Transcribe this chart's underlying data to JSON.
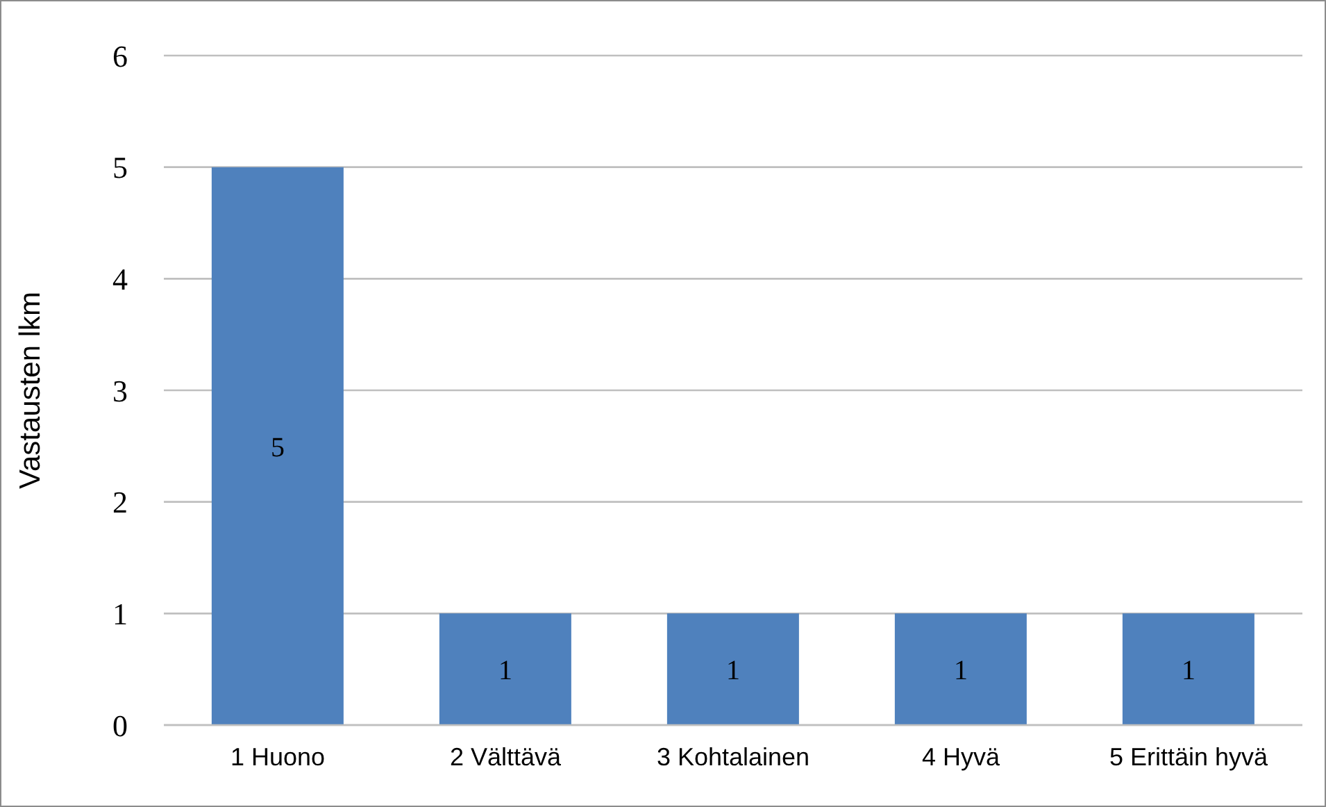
{
  "chart_data": {
    "type": "bar",
    "ylabel": "Vastausten lkm",
    "categories": [
      "1 Huono",
      "2 Välttävä",
      "3 Kohtalainen",
      "4 Hyvä",
      "5 Erittäin hyvä"
    ],
    "values": [
      5,
      1,
      1,
      1,
      1
    ],
    "color": "#4f81bd",
    "ylim": [
      0,
      6
    ],
    "yticks": [
      0,
      1,
      2,
      3,
      4,
      5,
      6
    ],
    "grid": "y",
    "data_labels": true
  }
}
